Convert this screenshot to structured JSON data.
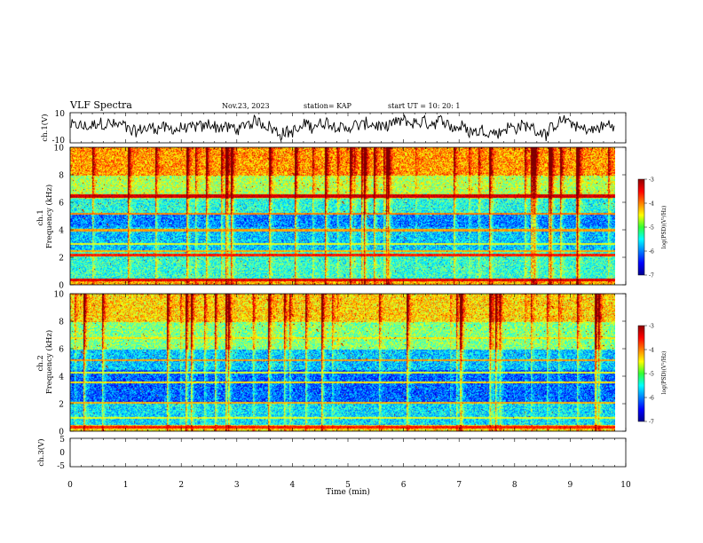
{
  "header": {
    "title": "VLF Spectra",
    "date": "Nov.23, 2023",
    "station": "station= KAP",
    "start": "start  UT =   10: 20: 1"
  },
  "chart_data": [
    {
      "type": "line",
      "panel": "ch1-waveform",
      "ylabel": "ch.1(V)",
      "ylim": [
        -10,
        10
      ],
      "yticks": [
        "10",
        "-10"
      ],
      "xlim": [
        0,
        10
      ],
      "x_end": 9.8
    },
    {
      "type": "heatmap",
      "panel": "ch1-spectrogram",
      "ylabel": "ch.1\nFrequency  (kHz)",
      "ylim": [
        0,
        10
      ],
      "yticks": [
        "0",
        "2",
        "4",
        "6",
        "8",
        "10"
      ],
      "xlim": [
        0,
        10
      ],
      "colorbar": {
        "label": "log(PSD)(V²/Hz)",
        "range": [
          -7,
          -3
        ],
        "ticks": [
          "-3",
          "-4",
          "-5",
          "-6",
          "-7"
        ]
      }
    },
    {
      "type": "heatmap",
      "panel": "ch2-spectrogram",
      "ylabel": "ch.2\nFrequency  (kHz)",
      "ylim": [
        0,
        10
      ],
      "yticks": [
        "0",
        "2",
        "4",
        "6",
        "8",
        "10"
      ],
      "xlim": [
        0,
        10
      ],
      "colorbar": {
        "label": "log(PSD)(V²/Hz)",
        "range": [
          -7,
          -3
        ],
        "ticks": [
          "-3",
          "-4",
          "-5",
          "-6",
          "-7"
        ]
      }
    },
    {
      "type": "line",
      "panel": "ch3-waveform",
      "ylabel": "ch.3(V)",
      "ylim": [
        -5,
        5
      ],
      "yticks": [
        "5",
        "0",
        "-5"
      ],
      "xlim": [
        0,
        10
      ],
      "level": -0.5
    }
  ],
  "xaxis": {
    "label": "Time  (min)",
    "ticks": [
      "0",
      "1",
      "2",
      "3",
      "4",
      "5",
      "6",
      "7",
      "8",
      "9",
      "10"
    ]
  }
}
